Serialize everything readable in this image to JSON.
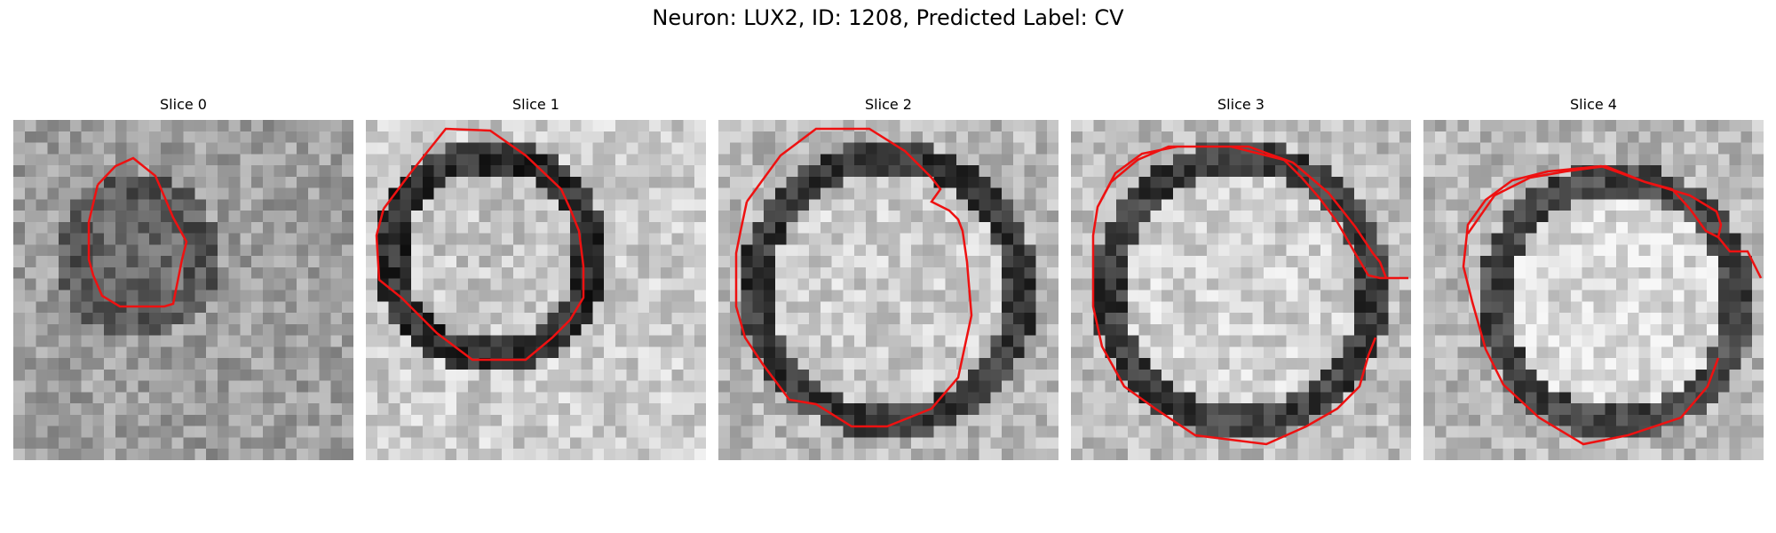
{
  "figure": {
    "title": "Neuron: LUX2, ID: 1208, Predicted Label: CV"
  },
  "panels": [
    {
      "label": "Slice 0"
    },
    {
      "label": "Slice 1"
    },
    {
      "label": "Slice 2"
    },
    {
      "label": "Slice 3"
    },
    {
      "label": "Slice 4"
    }
  ],
  "colors": {
    "contour": "#ee1111",
    "background": "#ffffff"
  }
}
